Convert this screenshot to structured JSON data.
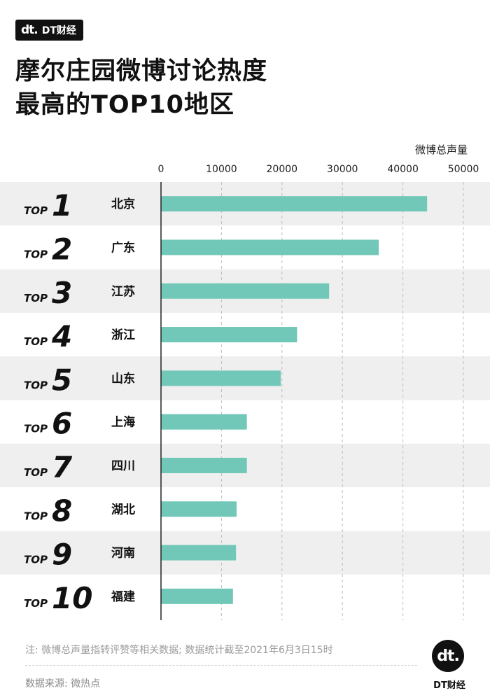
{
  "brand": {
    "logo_mark": "dt.",
    "name": "DT财经"
  },
  "title_lines": [
    "摩尔庄园微博讨论热度",
    "最高的TOP10地区"
  ],
  "colors": {
    "bar": "#71c8b8",
    "band_stripe": "#efefef",
    "grid": "#bbbbbb",
    "text": "#111111"
  },
  "chart_data": {
    "type": "bar",
    "orientation": "horizontal",
    "axis_title": "微博总声量",
    "xlim": [
      0,
      50000
    ],
    "ticks": [
      0,
      10000,
      20000,
      30000,
      40000,
      50000
    ],
    "grid": true,
    "rank_prefix": "TOP",
    "ranks": [
      "1",
      "2",
      "3",
      "4",
      "5",
      "6",
      "7",
      "8",
      "9",
      "10"
    ],
    "categories": [
      "北京",
      "广东",
      "江苏",
      "浙江",
      "山东",
      "上海",
      "四川",
      "湖北",
      "河南",
      "福建"
    ],
    "values": [
      44000,
      36000,
      27800,
      22500,
      19800,
      14200,
      14200,
      12500,
      12400,
      11900
    ]
  },
  "footer": {
    "note": "注: 微博总声量指转评赞等相关数据; 数据统计截至2021年6月3日15时",
    "source": "数据来源: 微热点",
    "logo_mark": "dt.",
    "logo_name": "DT财经"
  }
}
